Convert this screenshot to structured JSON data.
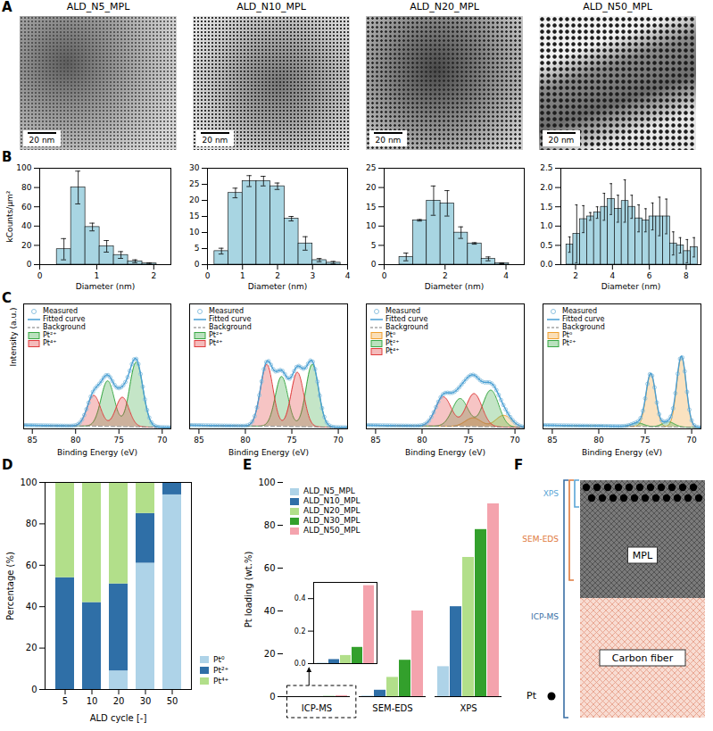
{
  "images": {
    "panel": "A",
    "titles": [
      "ALD_N5_MPL",
      "ALD_N10_MPL",
      "ALD_N20_MPL",
      "ALD_N50_MPL"
    ],
    "scale_bar": "20 nm"
  },
  "chart_data": [
    {
      "type": "histogram",
      "panel": "B",
      "color": "#a8d5e2",
      "xlabel": "Diameter (nm)",
      "ylabel": "kCounts/µm²",
      "bins": [
        0.3,
        0.55,
        0.8,
        1.05,
        1.3,
        1.55,
        1.8,
        2.05
      ],
      "values": [
        16,
        80,
        39,
        19,
        10,
        3.5,
        1.2
      ],
      "errors": [
        11,
        17,
        4,
        6,
        3.5,
        1.5,
        0.7
      ],
      "xlim": [
        0,
        2.3
      ],
      "xticks": [
        0,
        1,
        2
      ],
      "ylim": [
        0,
        100
      ],
      "yticks": [
        0,
        20,
        40,
        60,
        80,
        100
      ]
    },
    {
      "type": "histogram",
      "color": "#a8d5e2",
      "xlabel": "Diameter (nm)",
      "bins": [
        0.2,
        0.6,
        1.0,
        1.4,
        1.8,
        2.2,
        2.6,
        3.0,
        3.4,
        3.8
      ],
      "values": [
        4.2,
        22.3,
        26,
        26,
        24.4,
        14.3,
        6.6,
        1.4,
        0.6
      ],
      "errors": [
        0.9,
        1.5,
        1.7,
        1.5,
        1,
        0.7,
        2.1,
        0.5,
        0.4
      ],
      "xlim": [
        0,
        4
      ],
      "xticks": [
        0,
        1,
        2,
        3,
        4
      ],
      "ylim": [
        0,
        30
      ],
      "yticks": [
        0,
        5,
        10,
        15,
        20,
        25,
        30
      ]
    },
    {
      "type": "histogram",
      "color": "#a8d5e2",
      "xlabel": "Diameter (nm)",
      "bins": [
        0.5,
        0.95,
        1.4,
        1.85,
        2.3,
        2.75,
        3.2,
        3.65,
        4.1
      ],
      "values": [
        2,
        11.5,
        16.6,
        15.9,
        8.3,
        5.5,
        1.5,
        0.35
      ],
      "errors": [
        1,
        0.2,
        3.8,
        3.3,
        1.5,
        0.2,
        0.5,
        0.1
      ],
      "xlim": [
        0,
        4.6
      ],
      "xticks": [
        0,
        2,
        4
      ],
      "ylim": [
        0,
        25
      ],
      "yticks": [
        0,
        5,
        10,
        15,
        20,
        25
      ]
    },
    {
      "type": "histogram",
      "color": "#a8d5e2",
      "xlabel": "Diameter (nm)",
      "bins": [
        1.5,
        1.875,
        2.25,
        2.625,
        3,
        3.375,
        3.75,
        4.125,
        4.5,
        4.875,
        5.25,
        5.625,
        6,
        6.375,
        6.75,
        7.125,
        7.5,
        7.875,
        8.25,
        8.625
      ],
      "values": [
        0.52,
        0.8,
        1.18,
        1.25,
        1.35,
        1.5,
        1.7,
        1.45,
        1.65,
        1.5,
        1.2,
        1.15,
        1.25,
        1.25,
        1.25,
        0.55,
        0.5,
        0.35,
        0.45
      ],
      "errors": [
        0.2,
        0.75,
        0.35,
        0.1,
        0.15,
        0.35,
        0.4,
        0.35,
        0.55,
        0.3,
        0.35,
        0.3,
        0.35,
        0.5,
        0.45,
        0.3,
        0.2,
        0.3,
        0.25
      ],
      "xlim": [
        1.2,
        8.8
      ],
      "xticks": [
        2,
        4,
        6,
        8
      ],
      "ylim": [
        0,
        2.5
      ],
      "yticks": [
        {
          "value": 0,
          "label": "0.0"
        },
        0.5,
        {
          "value": 1,
          "label": "1.0"
        },
        1.5,
        {
          "value": 2,
          "label": "2.0"
        },
        2.5
      ]
    },
    {
      "type": "line",
      "panel": "C",
      "xlabel": "Binding Energy (eV)",
      "ylabel": "Intensity (a.u.)",
      "xlim": [
        86,
        69
      ],
      "xticks": [
        85,
        80,
        75,
        70
      ],
      "ylim": [
        0,
        1.7
      ],
      "tick_labels": "x",
      "legend": "upper left",
      "series": [
        {
          "name": "Measured",
          "color": "#8fc3e0",
          "marker": "circle",
          "line_style": "none"
        },
        {
          "name": "Fitted curve",
          "color": "#4a9fd4",
          "line_style": "solid"
        },
        {
          "name": "Background",
          "color": "#777777",
          "line_style": "dashed",
          "x": [
            86,
            69
          ],
          "values": [
            0.05,
            0.02
          ]
        },
        {
          "name": "Pt²⁺",
          "color": "#3aa845",
          "fwhm": 1.8,
          "peaks": [
            {
              "center": 73.0,
              "height": 0.88
            },
            {
              "center": 76.3,
              "height": 0.62
            }
          ]
        },
        {
          "name": "Pt⁴⁺",
          "color": "#e03c3c",
          "fwhm": 1.8,
          "peaks": [
            {
              "center": 74.6,
              "height": 0.4
            },
            {
              "center": 77.9,
              "height": 0.42
            }
          ]
        }
      ]
    },
    {
      "type": "line",
      "xlabel": "Binding Energy (eV)",
      "xlim": [
        86,
        69
      ],
      "xticks": [
        85,
        80,
        75,
        70
      ],
      "ylim": [
        0,
        1.7
      ],
      "tick_labels": "x",
      "legend": "upper left",
      "series": [
        {
          "name": "Measured",
          "color": "#8fc3e0",
          "marker": "circle",
          "line_style": "none"
        },
        {
          "name": "Fitted curve",
          "color": "#4a9fd4",
          "line_style": "solid"
        },
        {
          "name": "Background",
          "color": "#777777",
          "line_style": "dashed",
          "x": [
            86,
            69
          ],
          "values": [
            0.05,
            0.02
          ]
        },
        {
          "name": "Pt²⁺",
          "color": "#3aa845",
          "fwhm": 1.6,
          "peaks": [
            {
              "center": 72.8,
              "height": 0.85
            },
            {
              "center": 76.1,
              "height": 0.68
            }
          ]
        },
        {
          "name": "Pt⁴⁺",
          "color": "#e03c3c",
          "fwhm": 1.6,
          "peaks": [
            {
              "center": 74.4,
              "height": 0.74
            },
            {
              "center": 77.7,
              "height": 0.84
            }
          ]
        }
      ]
    },
    {
      "type": "line",
      "xlabel": "Binding Energy (eV)",
      "xlim": [
        86,
        69
      ],
      "xticks": [
        85,
        80,
        75,
        70
      ],
      "ylim": [
        0,
        1.7
      ],
      "tick_labels": "x",
      "legend": "upper left",
      "series": [
        {
          "name": "Measured",
          "color": "#8fc3e0",
          "marker": "circle",
          "line_style": "none"
        },
        {
          "name": "Fitted curve",
          "color": "#4a9fd4",
          "line_style": "solid"
        },
        {
          "name": "Background",
          "color": "#777777",
          "line_style": "dashed",
          "x": [
            86,
            69
          ],
          "values": [
            0.05,
            0.02
          ]
        },
        {
          "name": "Pt⁰",
          "color": "#f0a030",
          "fwhm": 2.0,
          "peaks": [
            {
              "center": 71.2,
              "height": 0.16
            },
            {
              "center": 74.5,
              "height": 0.12
            }
          ]
        },
        {
          "name": "Pt²⁺",
          "color": "#3aa845",
          "fwhm": 2.0,
          "peaks": [
            {
              "center": 72.6,
              "height": 0.5
            },
            {
              "center": 75.9,
              "height": 0.38
            }
          ]
        },
        {
          "name": "Pt⁴⁺",
          "color": "#e03c3c",
          "fwhm": 2.0,
          "peaks": [
            {
              "center": 74.4,
              "height": 0.45
            },
            {
              "center": 77.7,
              "height": 0.4
            }
          ]
        }
      ]
    },
    {
      "type": "line",
      "xlabel": "Binding Energy (eV)",
      "xlim": [
        86,
        69
      ],
      "xticks": [
        85,
        80,
        75,
        70
      ],
      "ylim": [
        0,
        1.7
      ],
      "tick_labels": "x",
      "legend": "upper left",
      "series": [
        {
          "name": "Measured",
          "color": "#8fc3e0",
          "marker": "circle",
          "line_style": "none"
        },
        {
          "name": "Fitted curve",
          "color": "#4a9fd4",
          "line_style": "solid"
        },
        {
          "name": "Background",
          "color": "#777777",
          "line_style": "dashed",
          "x": [
            86,
            69
          ],
          "values": [
            0.05,
            0.02
          ]
        },
        {
          "name": "Pt⁰",
          "color": "#f0a030",
          "fwhm": 1.2,
          "peaks": [
            {
              "center": 71.1,
              "height": 0.96
            },
            {
              "center": 74.4,
              "height": 0.72
            }
          ]
        },
        {
          "name": "Pt²⁺",
          "color": "#3aa845",
          "fwhm": 1.5,
          "peaks": [
            {
              "center": 72.5,
              "height": 0.07
            },
            {
              "center": 75.8,
              "height": 0.05
            }
          ]
        }
      ]
    },
    {
      "type": "bar",
      "panel": "D",
      "stacked": true,
      "xlabel": "ALD cycle [-]",
      "ylabel": "Percentage (%)",
      "legend": "right",
      "categories": [
        "5",
        "10",
        "20",
        "30",
        "50"
      ],
      "ylim": [
        0,
        100
      ],
      "yticks": [
        0,
        20,
        40,
        60,
        80,
        100
      ],
      "series": [
        {
          "name": "Pt⁰",
          "color": "#aed3e8",
          "values": [
            0,
            0,
            9,
            61,
            94
          ]
        },
        {
          "name": "Pt²⁺",
          "color": "#2f6fa7",
          "values": [
            54,
            42,
            42,
            24,
            6
          ]
        },
        {
          "name": "Pt⁴⁺",
          "color": "#b2df8a",
          "values": [
            46,
            58,
            49,
            15,
            0
          ]
        }
      ]
    },
    {
      "type": "bar",
      "panel": "E",
      "ylabel": "Pt loading (wt.%)",
      "legend": "upper left",
      "categories": [
        "ICP-MS",
        "SEM-EDS",
        "XPS"
      ],
      "ylim": [
        0,
        100
      ],
      "yticks": [
        0,
        20,
        40,
        60,
        80,
        100
      ],
      "series": [
        {
          "name": "ALD_N5_MPL",
          "color": "#aed3e8",
          "values": [
            0.003,
            0.3,
            14
          ]
        },
        {
          "name": "ALD_N10_MPL",
          "color": "#2f6fa7",
          "values": [
            0.025,
            3,
            42
          ]
        },
        {
          "name": "ALD_N20_MPL",
          "color": "#b2df8a",
          "values": [
            0.05,
            9,
            65
          ]
        },
        {
          "name": "ALD_N30_MPL",
          "color": "#33a02c",
          "values": [
            0.1,
            17,
            78
          ]
        },
        {
          "name": "ALD_N50_MPL",
          "color": "#f4a3ad",
          "values": [
            0.48,
            40,
            90
          ]
        }
      ],
      "inset": {
        "category": "ICP-MS",
        "ylim": [
          0,
          0.5
        ],
        "yticks": [
          {
            "value": 0,
            "label": "0.0"
          },
          0.2,
          0.4
        ]
      }
    }
  ],
  "diagram": {
    "panel": "F",
    "layers": [
      {
        "label": "MPL"
      },
      {
        "label": "Carbon fiber"
      }
    ],
    "probes": [
      {
        "label": "XPS"
      },
      {
        "label": "SEM-EDS"
      },
      {
        "label": "ICP-MS"
      }
    ],
    "particle": "Pt"
  }
}
